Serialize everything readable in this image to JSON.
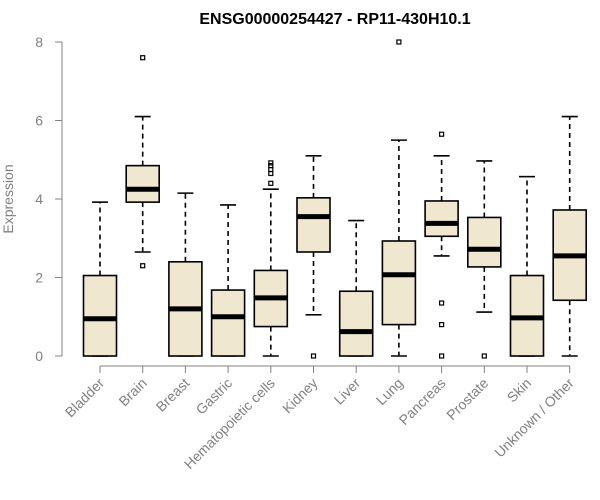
{
  "chart_data": {
    "type": "boxplot",
    "title": "ENSG00000254427 - RP11-430H10.1",
    "xlabel": "",
    "ylabel": "Expression",
    "ylim": [
      0,
      8
    ],
    "yticks": [
      0,
      2,
      4,
      6,
      8
    ],
    "grid": false,
    "box_color": "#efe7d0",
    "categories": [
      "Bladder",
      "Brain",
      "Breast",
      "Gastric",
      "Hematopoietic cells",
      "Kidney",
      "Liver",
      "Lung",
      "Pancreas",
      "Prostate",
      "Skin",
      "Unknown / Other"
    ],
    "boxes": [
      {
        "whisker_low": 0,
        "q1": 0,
        "median": 0.95,
        "q3": 2.05,
        "whisker_high": 3.92,
        "outliers": []
      },
      {
        "whisker_low": 2.65,
        "q1": 3.92,
        "median": 4.25,
        "q3": 4.85,
        "whisker_high": 6.1,
        "outliers": [
          7.6,
          2.3
        ]
      },
      {
        "whisker_low": 0,
        "q1": 0,
        "median": 1.2,
        "q3": 2.4,
        "whisker_high": 4.15,
        "outliers": []
      },
      {
        "whisker_low": 0,
        "q1": 0,
        "median": 1.0,
        "q3": 1.68,
        "whisker_high": 3.85,
        "outliers": []
      },
      {
        "whisker_low": 0,
        "q1": 0.75,
        "median": 1.48,
        "q3": 2.18,
        "whisker_high": 4.25,
        "outliers": [
          4.4,
          4.65,
          4.75,
          4.85,
          4.92
        ]
      },
      {
        "whisker_low": 1.05,
        "q1": 2.65,
        "median": 3.55,
        "q3": 4.03,
        "whisker_high": 5.1,
        "outliers": [
          0
        ]
      },
      {
        "whisker_low": 0,
        "q1": 0,
        "median": 0.62,
        "q3": 1.65,
        "whisker_high": 3.45,
        "outliers": []
      },
      {
        "whisker_low": 0,
        "q1": 0.8,
        "median": 2.07,
        "q3": 2.93,
        "whisker_high": 5.5,
        "outliers": [
          8.0
        ]
      },
      {
        "whisker_low": 2.55,
        "q1": 3.05,
        "median": 3.38,
        "q3": 3.95,
        "whisker_high": 5.1,
        "outliers": [
          5.65,
          1.35,
          0.8,
          0
        ]
      },
      {
        "whisker_low": 1.12,
        "q1": 2.27,
        "median": 2.72,
        "q3": 3.53,
        "whisker_high": 4.97,
        "outliers": [
          0
        ]
      },
      {
        "whisker_low": 0,
        "q1": 0,
        "median": 0.97,
        "q3": 2.05,
        "whisker_high": 4.57,
        "outliers": []
      },
      {
        "whisker_low": 0,
        "q1": 1.42,
        "median": 2.55,
        "q3": 3.72,
        "whisker_high": 6.1,
        "outliers": []
      }
    ]
  }
}
